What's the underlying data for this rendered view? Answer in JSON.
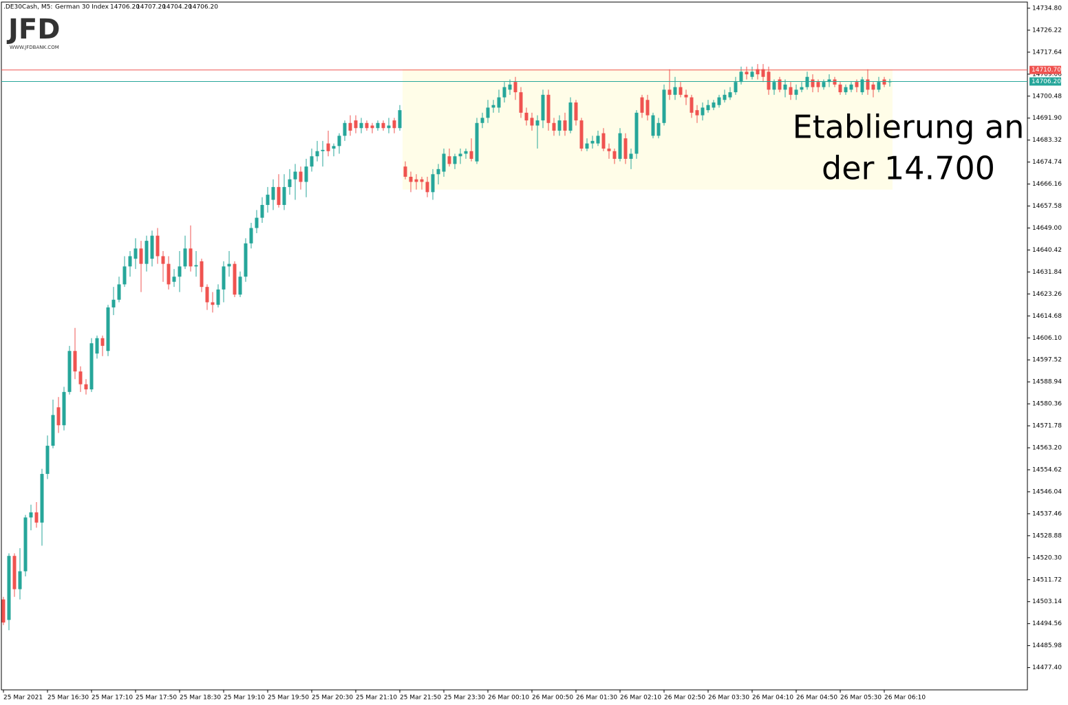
{
  "chart_data": {
    "type": "candlestick",
    "header": {
      "symbol": ".DE30Cash, M5:",
      "name": "German 30 Index",
      "readout": [
        "14706.20",
        "14707.20",
        "14704.20",
        "14706.20"
      ]
    },
    "logo": {
      "text": "JFD",
      "url": "WWW.JFDBANK.COM"
    },
    "annotation": [
      "Etablierung an",
      "der 14.700"
    ],
    "up_color": "#26a69a",
    "down_color": "#ef5350",
    "ylim": [
      14468.7,
      14737.2
    ],
    "yticks": [
      {
        "value": 14734.8,
        "label": "14734.80"
      },
      14726.22,
      14717.64,
      14709.06,
      14700.48,
      {
        "value": 14691.9,
        "label": "14691.90"
      },
      14683.32,
      14674.74,
      14666.16,
      14657.58,
      {
        "value": 14649,
        "label": "14649.00"
      },
      14640.42,
      14631.84,
      14623.26,
      14614.68,
      {
        "value": 14606.1,
        "label": "14606.10"
      },
      14597.52,
      14588.94,
      14580.36,
      14571.78,
      {
        "value": 14563.2,
        "label": "14563.20"
      },
      14554.62,
      14546.04,
      14537.46,
      14528.88,
      {
        "value": 14520.3,
        "label": "14520.30"
      },
      14511.72,
      14503.14,
      14494.56,
      14485.98,
      {
        "value": 14477.4,
        "label": "14477.40"
      }
    ],
    "price_lines": [
      {
        "value": 14710.7,
        "label": "14710.70",
        "color": "#ef5350"
      },
      {
        "value": 14706.2,
        "label": "14706.20",
        "color": "#26a69a"
      }
    ],
    "highlight": {
      "ylim": [
        14664,
        14711
      ],
      "start_index": 73,
      "color": "#fffde8"
    },
    "categories": [
      "25 Mar 2021",
      null,
      null,
      null,
      null,
      null,
      null,
      null,
      "25 Mar 16:30",
      null,
      null,
      null,
      null,
      null,
      null,
      null,
      "25 Mar 17:10",
      null,
      null,
      null,
      null,
      null,
      null,
      null,
      "25 Mar 17:50",
      null,
      null,
      null,
      null,
      null,
      null,
      null,
      "25 Mar 18:30",
      null,
      null,
      null,
      null,
      null,
      null,
      null,
      "25 Mar 19:10",
      null,
      null,
      null,
      null,
      null,
      null,
      null,
      "25 Mar 19:50",
      null,
      null,
      null,
      null,
      null,
      null,
      null,
      "25 Mar 20:30",
      null,
      null,
      null,
      null,
      null,
      null,
      null,
      "25 Mar 21:10",
      null,
      null,
      null,
      null,
      null,
      null,
      null,
      "25 Mar 21:50",
      null,
      null,
      null,
      null,
      null,
      null,
      null,
      "25 Mar 23:30",
      null,
      null,
      null,
      null,
      null,
      null,
      null,
      "26 Mar 00:10",
      null,
      null,
      null,
      null,
      null,
      null,
      null,
      "26 Mar 00:50",
      null,
      null,
      null,
      null,
      null,
      null,
      null,
      "26 Mar 01:30",
      null,
      null,
      null,
      null,
      null,
      null,
      null,
      "26 Mar 02:10",
      null,
      null,
      null,
      null,
      null,
      null,
      null,
      "26 Mar 02:50",
      null,
      null,
      null,
      null,
      null,
      null,
      null,
      "26 Mar 03:30",
      null,
      null,
      null,
      null,
      null,
      null,
      null,
      "26 Mar 04:10",
      null,
      null,
      null,
      null,
      null,
      null,
      null,
      "26 Mar 04:50",
      null,
      null,
      null,
      null,
      null,
      null,
      null,
      "26 Mar 05:30",
      null,
      null,
      null,
      null,
      null,
      null,
      null,
      "26 Mar 06:10",
      null
    ],
    "ohlc": [
      [
        14504,
        14505,
        14494,
        14495
      ],
      [
        14496,
        14522,
        14492,
        14521
      ],
      [
        14521,
        14522,
        14505,
        14508
      ],
      [
        14508,
        14524,
        14504,
        14515
      ],
      [
        14515,
        14537,
        14513,
        14536
      ],
      [
        14536,
        14541,
        14531,
        14538
      ],
      [
        14538,
        14542,
        14532,
        14534
      ],
      [
        14534,
        14555,
        14525,
        14553
      ],
      [
        14553,
        14568,
        14551,
        14564
      ],
      [
        14564,
        14582,
        14563,
        14576
      ],
      [
        14579,
        14583,
        14569,
        14572
      ],
      [
        14572,
        14587,
        14570,
        14585
      ],
      [
        14585,
        14603,
        14584,
        14601
      ],
      [
        14601,
        14610,
        14590,
        14593
      ],
      [
        14593,
        14595,
        14585,
        14588
      ],
      [
        14588,
        14590,
        14584,
        14586
      ],
      [
        14586,
        14606,
        14585,
        14604
      ],
      [
        14600,
        14607,
        14598,
        14606
      ],
      [
        14606,
        14607,
        14599,
        14603
      ],
      [
        14601,
        14619,
        14599,
        14618
      ],
      [
        14618,
        14626,
        14615,
        14621
      ],
      [
        14621,
        14630,
        14620,
        14627
      ],
      [
        14627,
        14638,
        14626,
        14634
      ],
      [
        14634,
        14640,
        14630,
        14638
      ],
      [
        14637,
        14645,
        14633,
        14641
      ],
      [
        14641,
        14644,
        14624,
        14635
      ],
      [
        14635,
        14646,
        14632,
        14644
      ],
      [
        14637,
        14648,
        14634,
        14646
      ],
      [
        14646,
        14649,
        14635,
        14638
      ],
      [
        14638,
        14640,
        14628,
        14635
      ],
      [
        14635,
        14638,
        14625,
        14627
      ],
      [
        14628,
        14633,
        14626,
        14630
      ],
      [
        14630,
        14640,
        14624,
        14634
      ],
      [
        14634,
        14646,
        14633,
        14641
      ],
      [
        14641,
        14650,
        14632,
        14634
      ],
      [
        14634,
        14640,
        14630,
        14634.5
      ],
      [
        14636,
        14637,
        14624,
        14626
      ],
      [
        14626,
        14627,
        14617,
        14620
      ],
      [
        14620,
        14624,
        14616,
        14619
      ],
      [
        14619,
        14627,
        14618,
        14625
      ],
      [
        14625,
        14636,
        14620,
        14634
      ],
      [
        14634,
        14640,
        14630,
        14635
      ],
      [
        14635,
        14636,
        14622,
        14623
      ],
      [
        14623,
        14632,
        14622,
        14630
      ],
      [
        14630,
        14645,
        14628,
        14643
      ],
      [
        14643,
        14651,
        14641,
        14649
      ],
      [
        14649,
        14656,
        14647,
        14653
      ],
      [
        14653,
        14661,
        14651,
        14658
      ],
      [
        14658,
        14665,
        14655,
        14662
      ],
      [
        14660,
        14668,
        14656,
        14665
      ],
      [
        14665,
        14670,
        14657,
        14658
      ],
      [
        14658,
        14670,
        14656,
        14665
      ],
      [
        14665,
        14672,
        14662,
        14668
      ],
      [
        14668,
        14674,
        14660,
        14671
      ],
      [
        14671,
        14673,
        14664,
        14667
      ],
      [
        14667,
        14676,
        14661,
        14673
      ],
      [
        14673,
        14680,
        14671,
        14677
      ],
      [
        14677,
        14683,
        14675,
        14679
      ],
      [
        14679,
        14683,
        14673,
        14679.5
      ],
      [
        14682,
        14687,
        14677,
        14679
      ],
      [
        14680,
        14682,
        14677,
        14681
      ],
      [
        14681,
        14686,
        14678,
        14685
      ],
      [
        14685,
        14691,
        14683,
        14690
      ],
      [
        14690,
        14693,
        14685,
        14687
      ],
      [
        14691,
        14693,
        14686,
        14688
      ],
      [
        14688,
        14692,
        14686,
        14690
      ],
      [
        14690,
        14691,
        14687,
        14688
      ],
      [
        14689,
        14690,
        14686,
        14688
      ],
      [
        14688,
        14691,
        14687,
        14690
      ],
      [
        14690,
        14691,
        14687,
        14688
      ],
      [
        14688,
        14692,
        14686,
        14689
      ],
      [
        14691,
        14692,
        14686,
        14688
      ],
      [
        14688,
        14697,
        14687,
        14695
      ],
      [
        14673,
        14675,
        14668,
        14669
      ],
      [
        14669,
        14671,
        14663,
        14667
      ],
      [
        14668,
        14670,
        14664,
        14667
      ],
      [
        14668,
        14669,
        14664,
        14667
      ],
      [
        14667,
        14669,
        14661,
        14663
      ],
      [
        14663,
        14672,
        14660,
        14670
      ],
      [
        14670,
        14674,
        14666,
        14672
      ],
      [
        14671,
        14680,
        14669,
        14678
      ],
      [
        14677,
        14680,
        14673,
        14674
      ],
      [
        14674,
        14678,
        14672,
        14677
      ],
      [
        14677,
        14680,
        14674,
        14678
      ],
      [
        14678,
        14680,
        14676,
        14679
      ],
      [
        14679,
        14684,
        14675,
        14676
      ],
      [
        14675,
        14692,
        14674,
        14690
      ],
      [
        14690,
        14694,
        14688,
        14692
      ],
      [
        14692,
        14699,
        14690,
        14696
      ],
      [
        14696,
        14699,
        14694,
        14697
      ],
      [
        14696,
        14703,
        14694,
        14700
      ],
      [
        14700,
        14706,
        14698,
        14704
      ],
      [
        14703,
        14707,
        14701,
        14705
      ],
      [
        14706,
        14708,
        14699,
        14702
      ],
      [
        14702,
        14704,
        14692,
        14694
      ],
      [
        14694,
        14696,
        14689,
        14691
      ],
      [
        14692,
        14694,
        14687,
        14689
      ],
      [
        14689,
        14693,
        14680,
        14691
      ],
      [
        14691,
        14703,
        14688,
        14701
      ],
      [
        14701,
        14703,
        14687,
        14690
      ],
      [
        14690,
        14692,
        14685,
        14687
      ],
      [
        14687,
        14693,
        14685,
        14691
      ],
      [
        14691,
        14694,
        14685,
        14687
      ],
      [
        14687,
        14700,
        14686,
        14698
      ],
      [
        14698,
        14699,
        14689,
        14691
      ],
      [
        14691,
        14692,
        14679,
        14680
      ],
      [
        14680,
        14684,
        14679,
        14682
      ],
      [
        14682,
        14685,
        14680,
        14683
      ],
      [
        14682,
        14687,
        14681,
        14685
      ],
      [
        14686,
        14688,
        14679,
        14680
      ],
      [
        14680,
        14682,
        14676,
        14679
      ],
      [
        14679,
        14680,
        14674,
        14676
      ],
      [
        14676,
        14688,
        14675,
        14686
      ],
      [
        14684,
        14686,
        14674,
        14676
      ],
      [
        14676,
        14680,
        14672,
        14678
      ],
      [
        14678,
        14695,
        14676,
        14694
      ],
      [
        14700,
        14701,
        14692,
        14694
      ],
      [
        14699,
        14701,
        14691,
        14693
      ],
      [
        14685,
        14694,
        14684,
        14693
      ],
      [
        14685,
        14692,
        14684,
        14690
      ],
      [
        14690,
        14705,
        14689,
        14703
      ],
      [
        14703,
        14711,
        14699,
        14701
      ],
      [
        14701,
        14708,
        14699,
        14704
      ],
      [
        14704,
        14706,
        14700,
        14701
      ],
      [
        14701,
        14703,
        14697,
        14700
      ],
      [
        14700,
        14701,
        14692,
        14694
      ],
      [
        14695,
        14697,
        14690,
        14693
      ],
      [
        14693,
        14698,
        14691,
        14696
      ],
      [
        14695,
        14699,
        14694,
        14697
      ],
      [
        14696,
        14699,
        14695,
        14698
      ],
      [
        14697,
        14701,
        14696,
        14700
      ],
      [
        14699,
        14703,
        14698,
        14701
      ],
      [
        14700,
        14704,
        14699,
        14702
      ],
      [
        14702,
        14708,
        14701,
        14706
      ],
      [
        14706,
        14712,
        14705,
        14710
      ],
      [
        14710,
        14712,
        14707,
        14709
      ],
      [
        14708,
        14712,
        14707,
        14710
      ],
      [
        14711,
        14713,
        14707,
        14709
      ],
      [
        14711,
        14713,
        14706,
        14708
      ],
      [
        14710,
        14712,
        14701,
        14703
      ],
      [
        14703,
        14707,
        14701,
        14706
      ],
      [
        14707,
        14708,
        14702,
        14703
      ],
      [
        14703,
        14707,
        14700,
        14705
      ],
      [
        14704,
        14706,
        14699,
        14701
      ],
      [
        14701,
        14705,
        14699,
        14703
      ],
      [
        14703,
        14706,
        14702,
        14704
      ],
      [
        14704,
        14710,
        14703,
        14708
      ],
      [
        14707,
        14709,
        14702,
        14704
      ],
      [
        14706,
        14707,
        14702,
        14704
      ],
      [
        14704,
        14707,
        14703,
        14706
      ],
      [
        14706,
        14709,
        14704,
        14707
      ],
      [
        14707,
        14708,
        14704,
        14705
      ],
      [
        14705,
        14706,
        14701,
        14702
      ],
      [
        14702,
        14705,
        14701,
        14704
      ],
      [
        14703,
        14706,
        14702,
        14705
      ],
      [
        14706,
        14707,
        14702,
        14704
      ],
      [
        14702,
        14708,
        14701,
        14707
      ],
      [
        14707,
        14711,
        14701,
        14703
      ],
      [
        14705,
        14706,
        14700,
        14703
      ],
      [
        14703,
        14708,
        14702,
        14706
      ],
      [
        14707,
        14708,
        14704,
        14705
      ],
      [
        14706.2,
        14707.2,
        14704.2,
        14706.2
      ]
    ]
  }
}
